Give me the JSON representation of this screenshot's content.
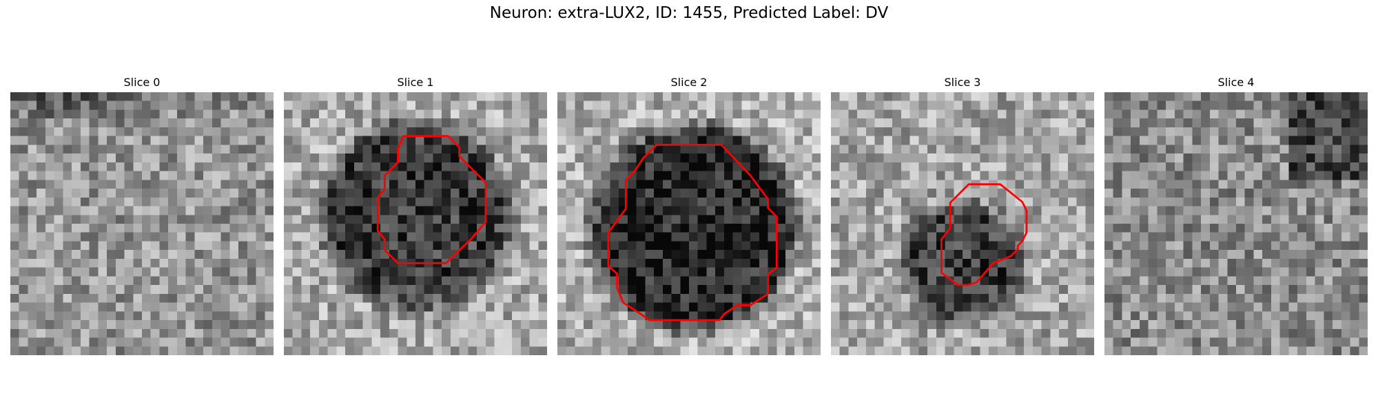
{
  "figure": {
    "title": "Neuron: extra-LUX2, ID: 1455, Predicted Label: DV"
  },
  "slices": [
    {
      "title": "Slice 0",
      "has_contour": false
    },
    {
      "title": "Slice 1",
      "has_contour": true
    },
    {
      "title": "Slice 2",
      "has_contour": true
    },
    {
      "title": "Slice 3",
      "has_contour": true
    },
    {
      "title": "Slice 4",
      "has_contour": false
    }
  ],
  "colors": {
    "contour": "#ff0000",
    "background": "#ffffff"
  }
}
